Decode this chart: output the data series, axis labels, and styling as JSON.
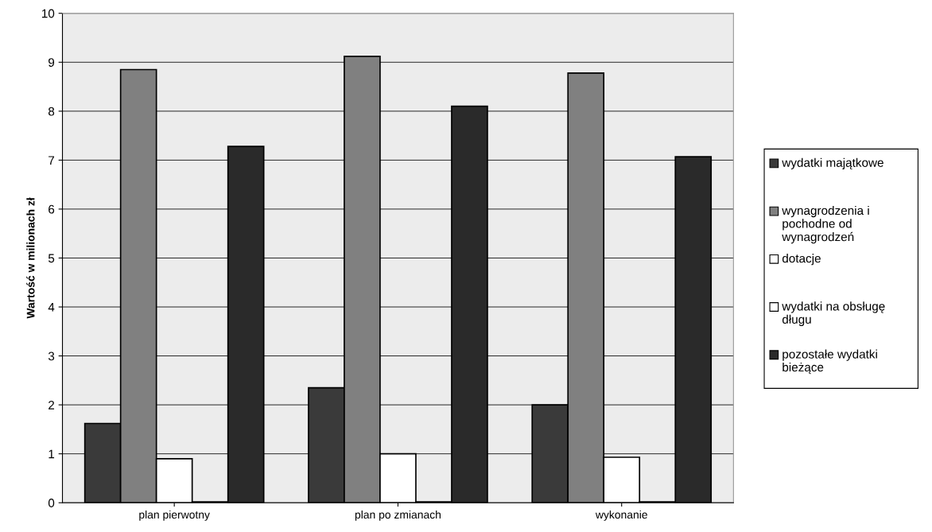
{
  "chart_data": {
    "type": "bar",
    "ylabel": "Wartość w milionach zł",
    "categories": [
      "plan pierwotny",
      "plan po zmianach",
      "wykonanie"
    ],
    "series": [
      {
        "name": "wydatki majątkowe",
        "color": "#3a3a3a",
        "values": [
          1.62,
          2.35,
          2.0
        ]
      },
      {
        "name": "wynagrodzenia i pochodne od wynagrodzeń",
        "color": "#808080",
        "values": [
          8.85,
          9.12,
          8.78
        ]
      },
      {
        "name": "dotacje",
        "color": "#ffffff",
        "values": [
          0.9,
          1.0,
          0.93
        ]
      },
      {
        "name": "wydatki na obsługę długu",
        "color": "#ffffff",
        "values": [
          0.02,
          0.02,
          0.02
        ]
      },
      {
        "name": "pozostałe wydatki bieżące",
        "color": "#2a2a2a",
        "values": [
          7.28,
          8.1,
          7.07
        ]
      }
    ],
    "ylim": [
      0,
      10
    ],
    "yticks": [
      0,
      1,
      2,
      3,
      4,
      5,
      6,
      7,
      8,
      9,
      10
    ],
    "grid": "y",
    "legend": "right"
  }
}
